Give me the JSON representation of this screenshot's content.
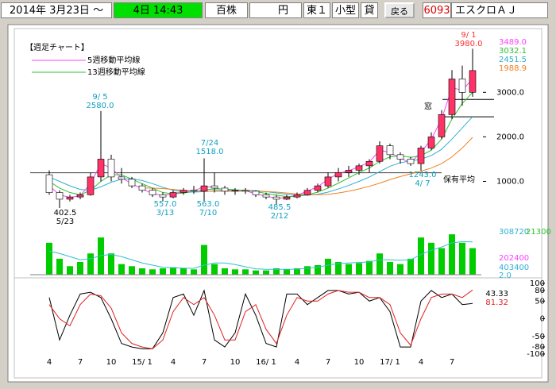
{
  "toolbar": {
    "date": "2014年 3月23日 ～",
    "period": "4日 14:43",
    "unit": "百株",
    "currency": "円",
    "market": "東１",
    "size": "小型",
    "lending": "貸",
    "back": "戻る",
    "code": "6093",
    "name": "エスクロＡＪ"
  },
  "chart_data": {
    "type": "candlestick",
    "title": "【週足チャート】",
    "categories": [
      "4",
      null,
      null,
      "7",
      null,
      null,
      "10",
      null,
      null,
      "15/ 1",
      null,
      null,
      "4",
      null,
      null,
      "7",
      null,
      null,
      "10",
      null,
      null,
      "16/ 1",
      null,
      null,
      "4",
      null,
      null,
      "7",
      null,
      null,
      "10",
      null,
      null,
      "17/ 1",
      null,
      null,
      "4",
      null,
      null,
      "7",
      null,
      null
    ],
    "open": [
      1150,
      750,
      600,
      650,
      700,
      1100,
      1500,
      1100,
      1050,
      900,
      800,
      700,
      650,
      750,
      800,
      780,
      900,
      850,
      780,
      800,
      780,
      700,
      650,
      600,
      650,
      700,
      800,
      900,
      1100,
      1200,
      1250,
      1350,
      1450,
      1800,
      1600,
      1500,
      1400,
      1750,
      2000,
      2500,
      3300,
      3000
    ],
    "high": [
      1250,
      800,
      700,
      750,
      1200,
      2580,
      1600,
      1300,
      1100,
      950,
      850,
      750,
      800,
      850,
      900,
      1518,
      1200,
      900,
      850,
      850,
      800,
      750,
      700,
      700,
      750,
      850,
      950,
      1200,
      1300,
      1350,
      1400,
      1500,
      1900,
      1850,
      1650,
      1550,
      1800,
      2100,
      2600,
      3500,
      3600,
      3980
    ],
    "low": [
      700,
      402.5,
      550,
      600,
      680,
      1000,
      1000,
      950,
      850,
      750,
      650,
      557,
      620,
      700,
      720,
      563,
      750,
      700,
      700,
      720,
      650,
      600,
      485.5,
      580,
      620,
      680,
      750,
      850,
      1000,
      1100,
      1150,
      1200,
      1400,
      1500,
      1400,
      1350,
      1243,
      1700,
      1950,
      2400,
      2700,
      2900
    ],
    "close": [
      750,
      600,
      650,
      700,
      1100,
      1500,
      1100,
      1050,
      900,
      800,
      700,
      650,
      750,
      800,
      780,
      900,
      850,
      780,
      800,
      780,
      700,
      650,
      600,
      650,
      700,
      800,
      900,
      1100,
      1200,
      1250,
      1350,
      1450,
      1800,
      1600,
      1500,
      1400,
      1750,
      2000,
      2500,
      3300,
      3000,
      3489
    ],
    "up_color": "#ff3366",
    "down_color": "#ffffff",
    "ylim": [
      100,
      4360
    ],
    "yticks": [
      {
        "value": 1000,
        "label": "1000.0"
      },
      {
        "value": 2000,
        "label": "2000.0"
      },
      {
        "value": 3000,
        "label": "3000.0"
      }
    ],
    "series": [
      {
        "name": "5週移動平均線",
        "color": "#ff40ff",
        "values": [
          900,
          700,
          640,
          680,
          950,
          1400,
          1300,
          1080,
          950,
          830,
          730,
          680,
          720,
          780,
          790,
          880,
          870,
          800,
          790,
          790,
          720,
          670,
          620,
          640,
          690,
          780,
          880,
          1050,
          1180,
          1240,
          1330,
          1430,
          1700,
          1650,
          1520,
          1420,
          1650,
          1950,
          2400,
          3100,
          3050,
          3300
        ]
      },
      {
        "name": "13週移動平均線",
        "color": "#30c030",
        "values": [
          1000,
          850,
          750,
          700,
          800,
          1000,
          1150,
          1150,
          1050,
          950,
          850,
          750,
          720,
          740,
          770,
          810,
          830,
          830,
          810,
          800,
          770,
          730,
          690,
          660,
          660,
          700,
          760,
          850,
          960,
          1080,
          1200,
          1300,
          1450,
          1550,
          1580,
          1540,
          1580,
          1700,
          1950,
          2400,
          2750,
          3000
        ]
      },
      {
        "color": "#30b0d0",
        "values": [
          1100,
          1000,
          900,
          820,
          800,
          880,
          980,
          1050,
          1060,
          1020,
          950,
          870,
          800,
          770,
          760,
          770,
          790,
          800,
          800,
          800,
          790,
          770,
          740,
          710,
          690,
          690,
          710,
          760,
          830,
          910,
          1000,
          1100,
          1220,
          1340,
          1420,
          1460,
          1500,
          1580,
          1720,
          1950,
          2200,
          2451.5
        ]
      },
      {
        "color": "#f08020",
        "values": [
          null,
          null,
          null,
          null,
          null,
          null,
          null,
          null,
          null,
          850,
          850,
          840,
          820,
          800,
          790,
          780,
          780,
          780,
          780,
          780,
          780,
          770,
          760,
          740,
          720,
          700,
          700,
          710,
          740,
          780,
          830,
          890,
          960,
          1040,
          1110,
          1170,
          1230,
          1300,
          1400,
          1550,
          1750,
          1988.9
        ]
      }
    ],
    "right_labels": [
      {
        "label": "3489.0",
        "color": "#ff40ff"
      },
      {
        "label": "3032.1",
        "color": "#30c030"
      },
      {
        "label": "2451.5",
        "color": "#30b0d0"
      },
      {
        "label": "1988.9",
        "color": "#f08020"
      }
    ],
    "annotations": [
      {
        "date": "9/ 5",
        "label": "2580.0",
        "value": 2580,
        "color": "#10a0c0"
      },
      {
        "date": "7/24",
        "label": "1518.0",
        "value": 1518,
        "color": "#10a0c0"
      },
      {
        "date": "5/23",
        "label": "402.5",
        "value": 402.5,
        "color": "#000000"
      },
      {
        "date": "3/13",
        "label": "557.0",
        "value": 557,
        "color": "#10a0c0"
      },
      {
        "date": "7/10",
        "label": "563.0",
        "value": 563,
        "color": "#10a0c0"
      },
      {
        "date": "2/12",
        "label": "485.5",
        "value": 485.5,
        "color": "#10a0c0"
      },
      {
        "date": "4/ 7",
        "label": "1243.0",
        "value": 1243,
        "color": "#10a0c0"
      },
      {
        "date": "9/ 1",
        "label": "3980.0",
        "value": 3980,
        "color": "#ff3030"
      }
    ],
    "holding_average": {
      "label": "保有平均",
      "value": 1195
    },
    "gap": {
      "label": "窓",
      "upper": 2840,
      "lower": 2450
    },
    "volume": {
      "color": "#00cc00",
      "ylim": [
        0,
        403400
      ],
      "values": [
        300000,
        150000,
        80000,
        120000,
        200000,
        350000,
        200000,
        100000,
        80000,
        60000,
        50000,
        60000,
        70000,
        60000,
        50000,
        280000,
        100000,
        60000,
        50000,
        50000,
        40000,
        40000,
        60000,
        50000,
        60000,
        80000,
        90000,
        150000,
        120000,
        100000,
        110000,
        130000,
        200000,
        120000,
        100000,
        150000,
        350000,
        300000,
        250000,
        380000,
        300000,
        250000
      ],
      "ma_color": "#30c0d0",
      "ma_values": [
        220000,
        200000,
        170000,
        140000,
        150000,
        180000,
        190000,
        170000,
        140000,
        110000,
        90000,
        70000,
        65000,
        62000,
        60000,
        90000,
        110000,
        110000,
        95000,
        75000,
        55000,
        50000,
        50000,
        50000,
        52000,
        60000,
        70000,
        90000,
        105000,
        110000,
        115000,
        120000,
        140000,
        140000,
        135000,
        140000,
        190000,
        230000,
        260000,
        300000,
        310000,
        308720
      ],
      "side_labels": [
        {
          "label": "308720",
          "color": "#30b0d0"
        },
        {
          "label": "21300",
          "color": "#30c030"
        },
        {
          "label": "202400",
          "color": "#ff40ff"
        },
        {
          "label": "403400",
          "color": "#30b0d0"
        },
        {
          "label": "2.0",
          "color": "#30b0d0"
        }
      ]
    },
    "stochastic": {
      "ylim": [
        -100,
        100
      ],
      "yticks": [
        100,
        80,
        50,
        0,
        -50,
        -80,
        -100
      ],
      "series": [
        {
          "color": "#000000",
          "values": [
            60,
            -60,
            10,
            70,
            75,
            60,
            0,
            -70,
            -80,
            -85,
            -85,
            -40,
            60,
            70,
            10,
            80,
            -60,
            -80,
            -40,
            70,
            10,
            -70,
            -80,
            70,
            70,
            40,
            60,
            80,
            80,
            70,
            75,
            50,
            60,
            20,
            -80,
            -80,
            50,
            80,
            60,
            70,
            40,
            43.33
          ]
        },
        {
          "color": "#e02020",
          "values": [
            40,
            0,
            -20,
            40,
            70,
            65,
            30,
            -40,
            -70,
            -80,
            -85,
            -60,
            20,
            60,
            40,
            60,
            10,
            -60,
            -60,
            20,
            40,
            -30,
            -70,
            10,
            60,
            50,
            50,
            70,
            80,
            75,
            75,
            60,
            60,
            40,
            -40,
            -75,
            0,
            60,
            70,
            70,
            60,
            81.32
          ]
        }
      ]
    }
  }
}
